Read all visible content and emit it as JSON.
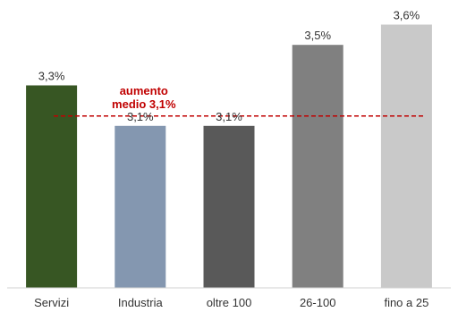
{
  "chart_data": {
    "type": "bar",
    "categories": [
      "Servizi",
      "Industria",
      "oltre 100",
      "26-100",
      "fino a 25"
    ],
    "values": [
      3.3,
      3.1,
      3.1,
      3.5,
      3.6
    ],
    "data_labels": [
      "3,3%",
      "3,1%",
      "3,1%",
      "3,5%",
      "3,6%"
    ],
    "bar_colors": [
      "#375623",
      "#8497b0",
      "#595959",
      "#808080",
      "#c9c9c9"
    ],
    "title": "",
    "xlabel": "",
    "ylabel": "",
    "ylim": [
      2.3,
      3.62
    ],
    "grid": false,
    "reference_line": {
      "value": 3.1,
      "color": "#c00000",
      "style": "dashed",
      "label_line1": "aumento",
      "label_line2": "medio 3,1%"
    }
  }
}
